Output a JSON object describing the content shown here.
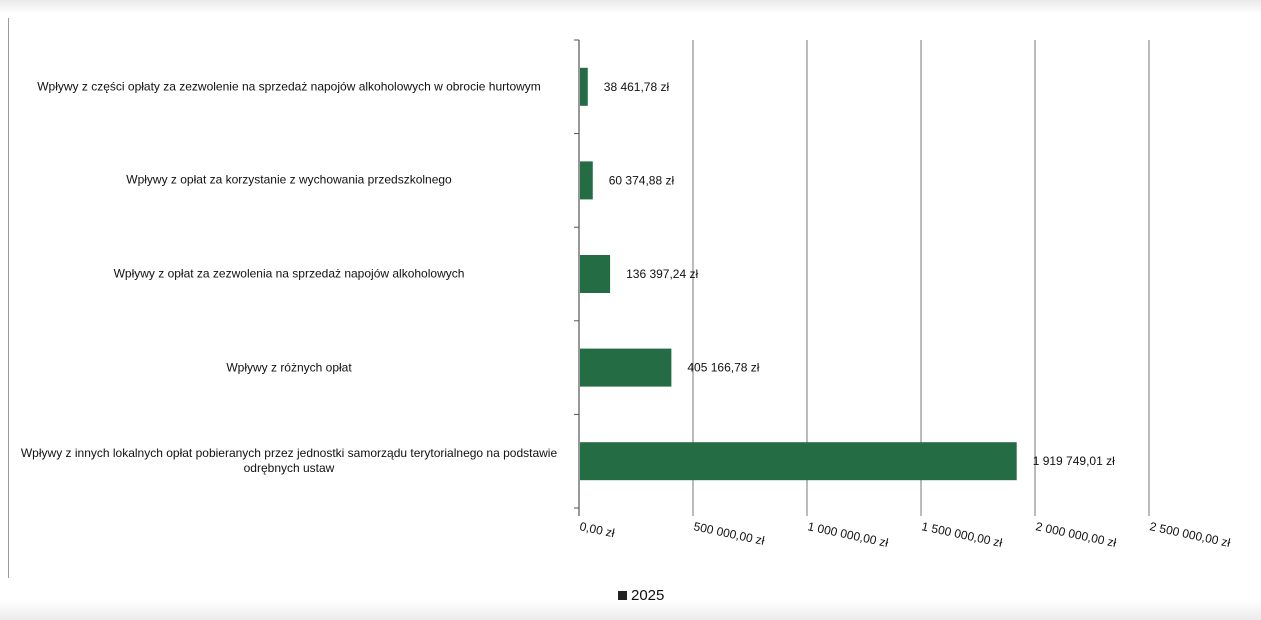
{
  "chart_data": {
    "type": "bar",
    "orientation": "horizontal",
    "categories": [
      "Wpływy z części opłaty za zezwolenie na sprzedaż napojów alkoholowych w obrocie hurtowym",
      "Wpływy z opłat za korzystanie z wychowania przedszkolnego",
      "Wpływy z opłat za zezwolenia na sprzedaż napojów alkoholowych",
      "Wpływy z różnych opłat",
      "Wpływy z innych lokalnych opłat pobieranych przez jednostki samorządu terytorialnego na podstawie odrębnych ustaw"
    ],
    "series": [
      {
        "name": "2025",
        "values": [
          38461.78,
          60374.88,
          136397.24,
          405166.78,
          1919749.01
        ],
        "color": "#236c44"
      }
    ],
    "data_labels": [
      "38 461,78 zł",
      "60 374,88 zł",
      "136 397,24 zł",
      "405 166,78 zł",
      "1 919 749,01 zł"
    ],
    "x_ticks": [
      0,
      500000,
      1000000,
      1500000,
      2000000,
      2500000
    ],
    "x_tick_labels": [
      "0,00 zł",
      "500 000,00 zł",
      "1 000 000,00 zł",
      "1 500 000,00 zł",
      "2 000 000,00 zł",
      "2 500 000,00 zł"
    ],
    "xlim": [
      0,
      2500000
    ],
    "grid": true,
    "legend_position": "bottom-center",
    "title": "",
    "xlabel": "",
    "ylabel": ""
  },
  "legend": {
    "label": "2025"
  }
}
